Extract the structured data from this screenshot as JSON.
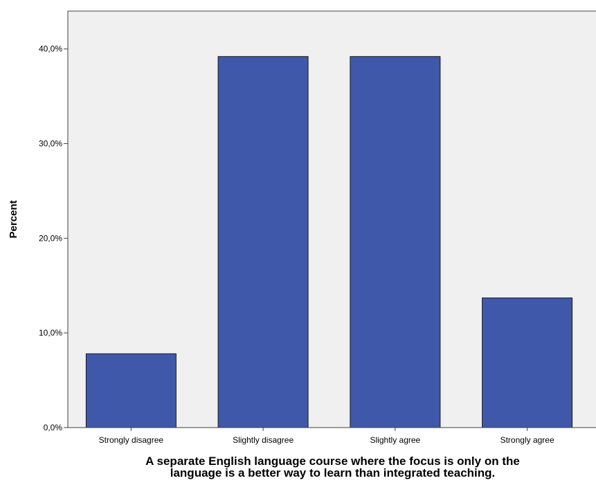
{
  "chart_data": {
    "type": "bar",
    "categories": [
      "Strongly disagree",
      "Slightly disagree",
      "Slightly agree",
      "Strongly agree"
    ],
    "values": [
      7.8,
      39.2,
      39.2,
      13.7
    ],
    "ylabel": "Percent",
    "xlabel_lines": [
      "A separate English language course where the focus is only on the",
      "language is a better way to learn than integrated teaching."
    ],
    "ylim": [
      0,
      44
    ],
    "y_ticks": [
      0,
      10,
      20,
      30,
      40
    ],
    "y_tick_labels": [
      "0,0%",
      "10,0%",
      "20,0%",
      "30,0%",
      "40,0%"
    ],
    "grid": false,
    "legend": "none",
    "colors": {
      "bar_fill": "#3F58A9",
      "bar_stroke": "#1a1a1a",
      "plot_background": "#F0F0F0",
      "axis": "#404040"
    }
  }
}
